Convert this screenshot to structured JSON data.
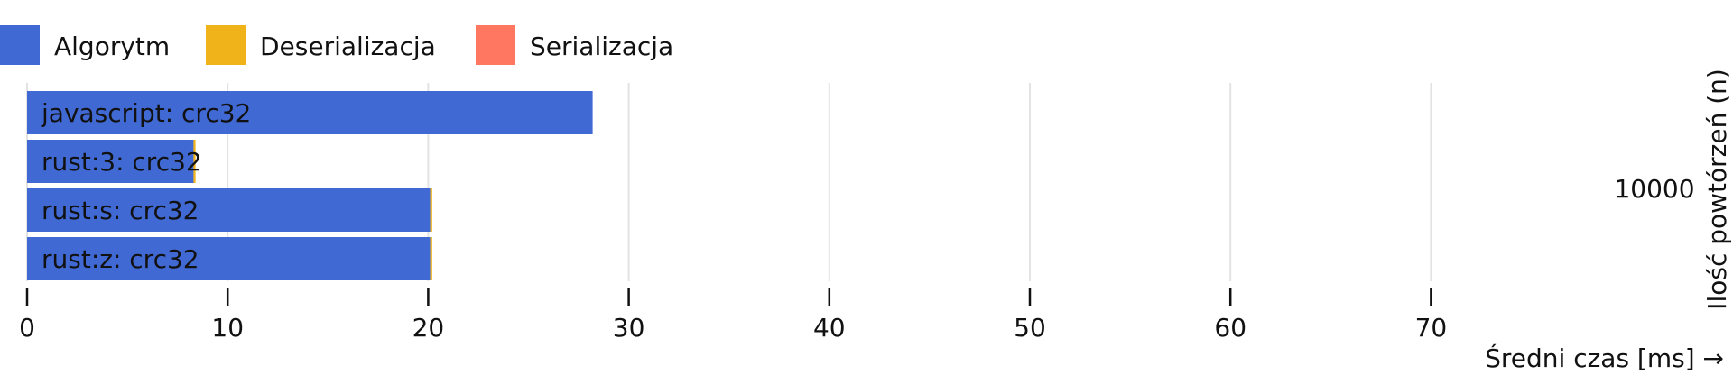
{
  "chart_data": {
    "type": "bar",
    "orientation": "horizontal",
    "stacked": true,
    "legend_placement": "top-left",
    "grid": true,
    "xlabel": "Średni czas [ms] →",
    "ylabel": "Ilość powtórzeń (n)",
    "xlim": [
      0,
      70
    ],
    "x_ticks": [
      0,
      10,
      20,
      30,
      40,
      50,
      60,
      70
    ],
    "group_label": "10000",
    "categories": [
      "javascript: crc32",
      "rust:3: crc32",
      "rust:s: crc32",
      "rust:z: crc32"
    ],
    "series": [
      {
        "name": "Algorytm",
        "color": "#4169d4",
        "values": [
          28.2,
          8.3,
          20.1,
          20.1
        ]
      },
      {
        "name": "Deserializacja",
        "color": "#f0b31a",
        "values": [
          0.0,
          0.1,
          0.1,
          0.1
        ]
      },
      {
        "name": "Serializacja",
        "color": "#ff7761",
        "values": [
          0.0,
          0.0,
          0.0,
          0.0
        ]
      }
    ]
  }
}
